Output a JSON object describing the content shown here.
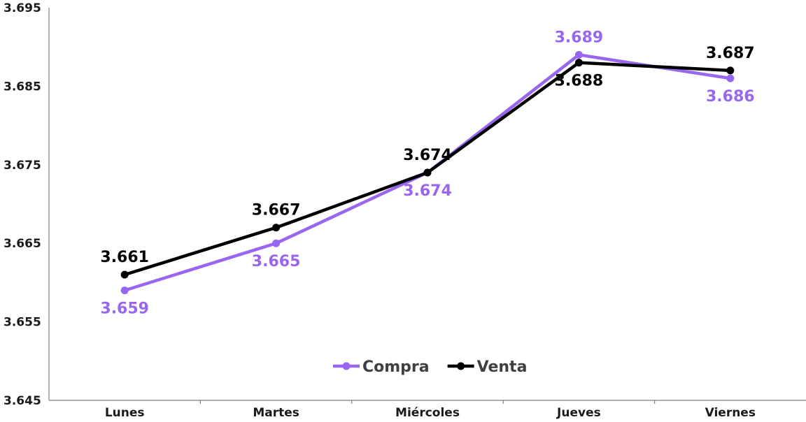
{
  "chart_data": {
    "type": "line",
    "categories": [
      "Lunes",
      "Martes",
      "Miércoles",
      "Jueves",
      "Viernes"
    ],
    "series": [
      {
        "name": "Compra",
        "color": "#9966EE",
        "values": [
          3.659,
          3.665,
          3.674,
          3.689,
          3.686
        ],
        "labels": [
          "3.659",
          "3.665",
          "3.674",
          "3.689",
          "3.686"
        ],
        "label_positions": [
          "below",
          "below",
          "below",
          "above",
          "below"
        ]
      },
      {
        "name": "Venta",
        "color": "#000000",
        "values": [
          3.661,
          3.667,
          3.674,
          3.688,
          3.687
        ],
        "labels": [
          "3.661",
          "3.667",
          "3.674",
          "3.688",
          "3.687"
        ],
        "label_positions": [
          "above",
          "above",
          "above",
          "below",
          "above"
        ]
      }
    ],
    "yticks": [
      "3.645",
      "3.655",
      "3.665",
      "3.675",
      "3.685",
      "3.695"
    ],
    "ylim": [
      3.645,
      3.695
    ],
    "grid": false,
    "legend": "bottom-center"
  }
}
